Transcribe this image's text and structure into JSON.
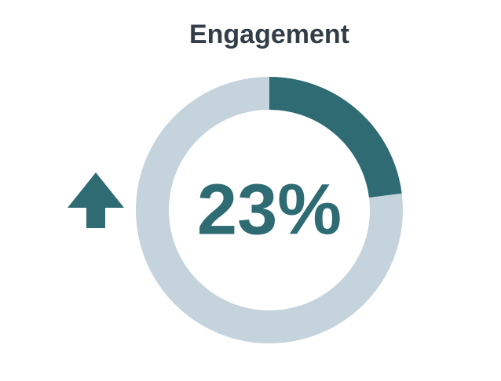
{
  "chart_data": {
    "type": "donut",
    "title": "Engagement",
    "value": 23,
    "value_label": "23%",
    "ylim": [
      0,
      100
    ],
    "color": "#2e6b73",
    "track_color": "#c5d3dc"
  }
}
